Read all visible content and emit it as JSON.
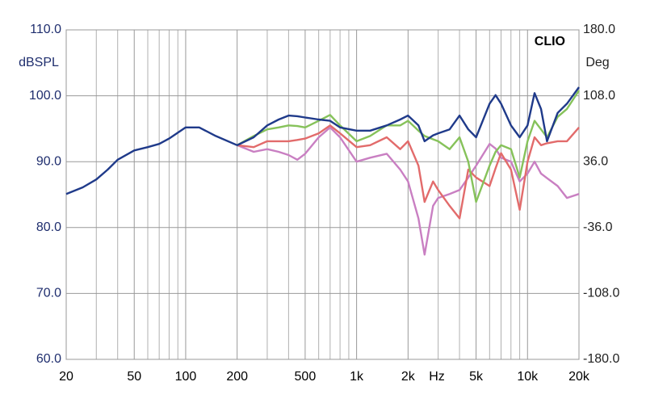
{
  "chart_data": {
    "type": "line",
    "annotation": "CLIO",
    "xlabel": "Hz",
    "ylabel": "dBSPL",
    "y2label": "Deg",
    "xlog": true,
    "grid": true,
    "minor_grid": true,
    "xlim": [
      20,
      20000
    ],
    "ylim": [
      60,
      110
    ],
    "y2lim": [
      -180,
      180
    ],
    "xticks": [
      20,
      50,
      100,
      200,
      500,
      {
        "value": 1000,
        "label": "1k"
      },
      {
        "value": 2000,
        "label": "2k"
      },
      {
        "value": 5000,
        "label": "5k"
      },
      {
        "value": 10000,
        "label": "10k"
      },
      {
        "value": 20000,
        "label": "20k"
      }
    ],
    "yticks": [
      {
        "value": 60,
        "label": "60.0"
      },
      {
        "value": 70,
        "label": "70.0"
      },
      {
        "value": 80,
        "label": "80.0"
      },
      {
        "value": 90,
        "label": "90.0"
      },
      {
        "value": 100,
        "label": "100.0"
      },
      {
        "value": 110,
        "label": "110.0"
      }
    ],
    "y2ticks": [
      {
        "value": -180,
        "label": "-180.0"
      },
      {
        "value": -108,
        "label": "-108.0"
      },
      {
        "value": -36,
        "label": "-36.0"
      },
      {
        "value": 36,
        "label": "36.0"
      },
      {
        "value": 108,
        "label": "108.0"
      },
      {
        "value": 180,
        "label": "180.0"
      }
    ],
    "x": [
      20,
      25,
      30,
      35,
      40,
      50,
      60,
      70,
      80,
      100,
      120,
      150,
      200,
      250,
      300,
      350,
      400,
      450,
      500,
      600,
      700,
      800,
      1000,
      1200,
      1500,
      1800,
      2000,
      2300,
      2500,
      2800,
      3000,
      3500,
      4000,
      4500,
      5000,
      6000,
      6500,
      7000,
      8000,
      9000,
      10000,
      11000,
      12000,
      13000,
      15000,
      17000,
      20000
    ],
    "series": [
      {
        "color": "#1f3a8a",
        "values": [
          85.1,
          86.1,
          87.3,
          88.8,
          90.3,
          91.7,
          92.2,
          92.7,
          93.5,
          95.2,
          95.2,
          93.9,
          92.5,
          93.7,
          95.5,
          96.4,
          97.0,
          96.9,
          96.7,
          96.4,
          96.2,
          95.2,
          94.7,
          94.7,
          95.5,
          96.4,
          97.0,
          95.5,
          93.1,
          94.0,
          94.3,
          94.9,
          97.0,
          94.9,
          93.7,
          98.8,
          100.1,
          98.8,
          95.5,
          93.7,
          95.5,
          100.4,
          98.0,
          93.1,
          97.4,
          98.8,
          101.3
        ]
      },
      {
        "color": "#86c25a",
        "values": [
          null,
          null,
          null,
          null,
          null,
          null,
          null,
          null,
          null,
          null,
          null,
          null,
          92.5,
          93.9,
          94.9,
          95.2,
          95.5,
          95.4,
          95.2,
          96.2,
          97.1,
          95.5,
          93.1,
          93.9,
          95.5,
          95.5,
          96.2,
          94.7,
          93.9,
          93.4,
          93.1,
          91.9,
          93.7,
          90.0,
          83.9,
          89.4,
          91.5,
          92.5,
          91.9,
          87.6,
          93.1,
          96.2,
          94.9,
          93.7,
          96.8,
          98.0,
          100.8
        ]
      },
      {
        "color": "#e26b6b",
        "values": [
          null,
          null,
          null,
          null,
          null,
          null,
          null,
          null,
          null,
          null,
          null,
          null,
          92.5,
          92.2,
          93.1,
          93.1,
          93.1,
          93.3,
          93.5,
          94.3,
          95.5,
          94.3,
          92.2,
          92.5,
          93.7,
          91.9,
          93.1,
          89.4,
          83.9,
          87.0,
          85.7,
          83.3,
          81.4,
          88.8,
          87.6,
          86.3,
          89.0,
          91.3,
          88.8,
          82.7,
          90.0,
          93.7,
          92.5,
          92.8,
          93.1,
          93.1,
          95.2
        ]
      },
      {
        "color": "#c97fc2",
        "values": [
          null,
          null,
          null,
          null,
          null,
          null,
          null,
          null,
          null,
          null,
          null,
          null,
          92.5,
          91.5,
          91.9,
          91.5,
          91.0,
          90.3,
          91.2,
          93.7,
          95.2,
          93.7,
          90.0,
          90.6,
          91.2,
          88.8,
          87.0,
          81.4,
          75.9,
          83.3,
          84.5,
          85.1,
          85.7,
          87.6,
          89.4,
          92.7,
          92.0,
          90.6,
          90.0,
          87.0,
          88.2,
          90.0,
          88.2,
          87.5,
          86.3,
          84.5,
          85.1
        ]
      }
    ]
  }
}
